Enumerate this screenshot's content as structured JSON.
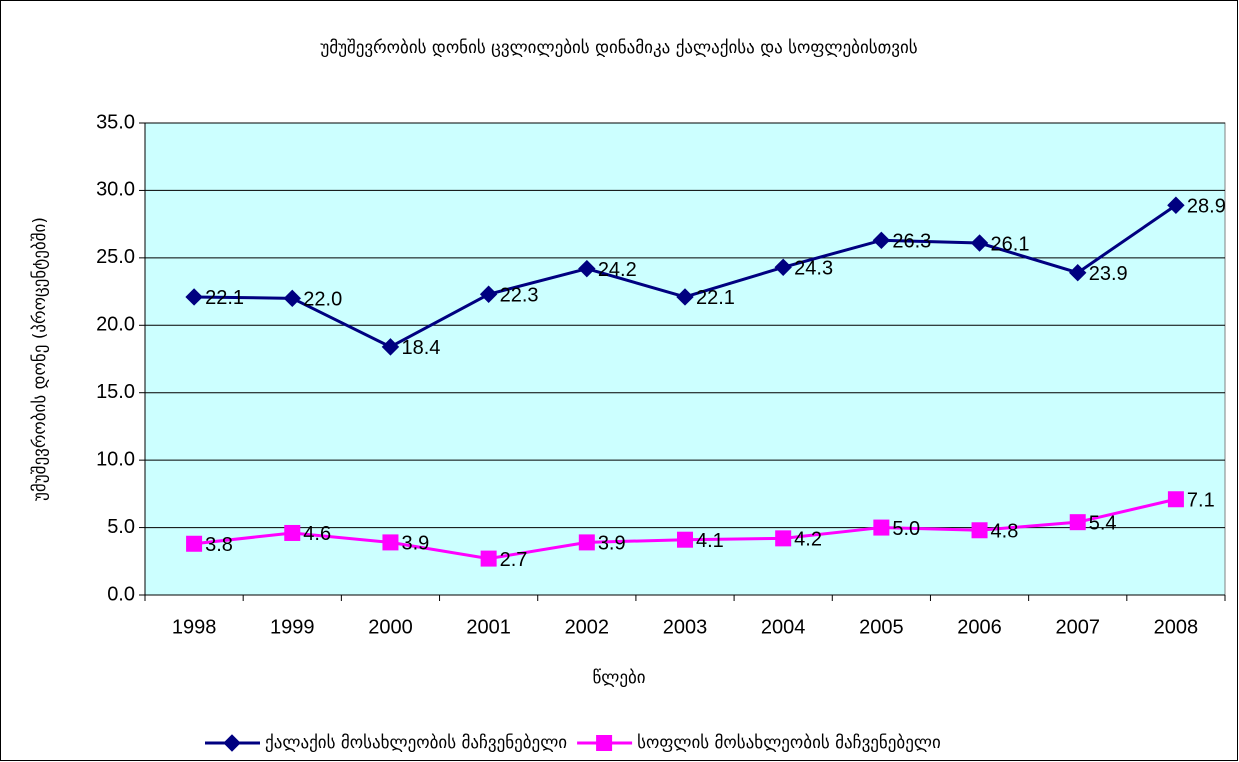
{
  "chart_data": {
    "type": "line",
    "title": "უმუშევრობის დონის ცვლილების დინამიკა ქალაქისა და სოფლებისთვის",
    "x_label": "წლები",
    "y_label": "უმუშევრობის დონე (პროცენტებში)",
    "categories": [
      "1998",
      "1999",
      "2000",
      "2001",
      "2002",
      "2003",
      "2004",
      "2005",
      "2006",
      "2007",
      "2008"
    ],
    "series": [
      {
        "name": "ქალაქის მოსახლეობის მაჩვენებელი",
        "color": "#000080",
        "marker": "diamond",
        "values": [
          22.1,
          22.0,
          18.4,
          22.3,
          24.2,
          22.1,
          24.3,
          26.3,
          26.1,
          23.9,
          28.9
        ],
        "value_labels": [
          "22.1",
          "22.0",
          "18.4",
          "22.3",
          "24.2",
          "22.1",
          "24.3",
          "26.3",
          "26.1",
          "23.9",
          "28.9"
        ]
      },
      {
        "name": "სოფლის მოსახლეობის მაჩვენებელი",
        "color": "#FF00FF",
        "marker": "square",
        "values": [
          3.8,
          4.6,
          3.9,
          2.7,
          3.9,
          4.1,
          4.2,
          5.0,
          4.8,
          5.4,
          7.1
        ],
        "value_labels": [
          "3.8",
          "4.6",
          "3.9",
          "2.7",
          "3.9",
          "4.1",
          "4.2",
          "5.0",
          "4.8",
          "5.4",
          "7.1"
        ]
      }
    ],
    "ylim": [
      0,
      35
    ],
    "yticks": [
      {
        "value": 0,
        "label": "0.0"
      },
      {
        "value": 5,
        "label": "5.0"
      },
      {
        "value": 10,
        "label": "10.0"
      },
      {
        "value": 15,
        "label": "15.0"
      },
      {
        "value": 20,
        "label": "20.0"
      },
      {
        "value": 25,
        "label": "25.0"
      },
      {
        "value": 30,
        "label": "30.0"
      },
      {
        "value": 35,
        "label": "35.0"
      }
    ],
    "grid": true,
    "plot_background": "#CCFFFF",
    "legend": "bottom"
  }
}
